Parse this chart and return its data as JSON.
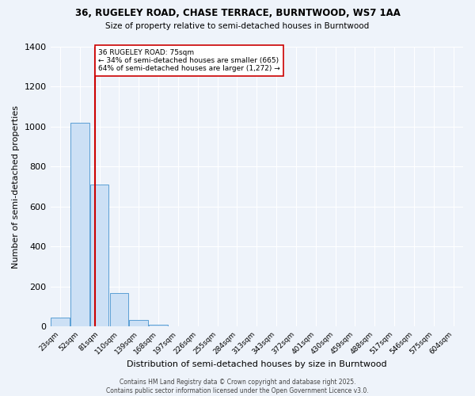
{
  "title_line1": "36, RUGELEY ROAD, CHASE TERRACE, BURNTWOOD, WS7 1AA",
  "title_line2": "Size of property relative to semi-detached houses in Burntwood",
  "xlabel": "Distribution of semi-detached houses by size in Burntwood",
  "ylabel": "Number of semi-detached properties",
  "categories": [
    "23sqm",
    "52sqm",
    "81sqm",
    "110sqm",
    "139sqm",
    "168sqm",
    "197sqm",
    "226sqm",
    "255sqm",
    "284sqm",
    "313sqm",
    "343sqm",
    "372sqm",
    "401sqm",
    "430sqm",
    "459sqm",
    "488sqm",
    "517sqm",
    "546sqm",
    "575sqm",
    "604sqm"
  ],
  "values": [
    45,
    1020,
    710,
    170,
    35,
    10,
    0,
    0,
    0,
    0,
    0,
    0,
    0,
    0,
    0,
    0,
    0,
    0,
    0,
    0,
    0
  ],
  "bar_color": "#cce0f5",
  "bar_edge_color": "#5a9fd4",
  "background_color": "#eef3fa",
  "grid_color": "#ffffff",
  "annotation_box_color": "#ffffff",
  "annotation_box_edge": "#cc0000",
  "property_line_color": "#cc0000",
  "property_size": 75,
  "footer": "Contains HM Land Registry data © Crown copyright and database right 2025.\nContains public sector information licensed under the Open Government Licence v3.0.",
  "ylim": [
    0,
    1400
  ],
  "yticks": [
    0,
    200,
    400,
    600,
    800,
    1000,
    1200,
    1400
  ]
}
